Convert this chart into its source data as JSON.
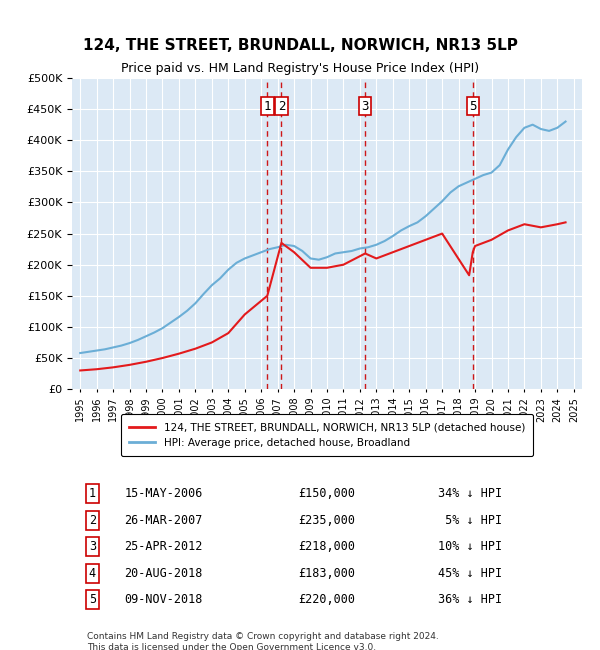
{
  "title": "124, THE STREET, BRUNDALL, NORWICH, NR13 5LP",
  "subtitle": "Price paid vs. HM Land Registry's House Price Index (HPI)",
  "background_color": "#dce9f5",
  "plot_bg_color": "#dce9f5",
  "hpi_color": "#6baed6",
  "price_color": "#e31a1c",
  "vline_color": "#cc0000",
  "ylim": [
    0,
    500000
  ],
  "yticks": [
    0,
    50000,
    100000,
    150000,
    200000,
    250000,
    300000,
    350000,
    400000,
    450000,
    500000
  ],
  "ylabel_format": "£{0}K",
  "sales": [
    {
      "num": 1,
      "date_str": "15-MAY-2006",
      "date_x": 2006.37,
      "price": 150000,
      "pct": "34% ↓ HPI"
    },
    {
      "num": 2,
      "date_str": "26-MAR-2007",
      "date_x": 2007.23,
      "price": 235000,
      "pct": "5% ↓ HPI"
    },
    {
      "num": 3,
      "date_str": "25-APR-2012",
      "date_x": 2012.32,
      "price": 218000,
      "pct": "10% ↓ HPI"
    },
    {
      "num": 4,
      "date_str": "20-AUG-2018",
      "date_x": 2018.64,
      "price": 183000,
      "pct": "45% ↓ HPI"
    },
    {
      "num": 5,
      "date_str": "09-NOV-2018",
      "date_x": 2018.86,
      "price": 220000,
      "pct": "36% ↓ HPI"
    }
  ],
  "legend_label_price": "124, THE STREET, BRUNDALL, NORWICH, NR13 5LP (detached house)",
  "legend_label_hpi": "HPI: Average price, detached house, Broadland",
  "footer": "Contains HM Land Registry data © Crown copyright and database right 2024.\nThis data is licensed under the Open Government Licence v3.0.",
  "xlim": [
    1994.5,
    2025.5
  ],
  "xticks": [
    1995,
    1996,
    1997,
    1998,
    1999,
    2000,
    2001,
    2002,
    2003,
    2004,
    2005,
    2006,
    2007,
    2008,
    2009,
    2010,
    2011,
    2012,
    2013,
    2014,
    2015,
    2016,
    2017,
    2018,
    2019,
    2020,
    2021,
    2022,
    2023,
    2024,
    2025
  ]
}
